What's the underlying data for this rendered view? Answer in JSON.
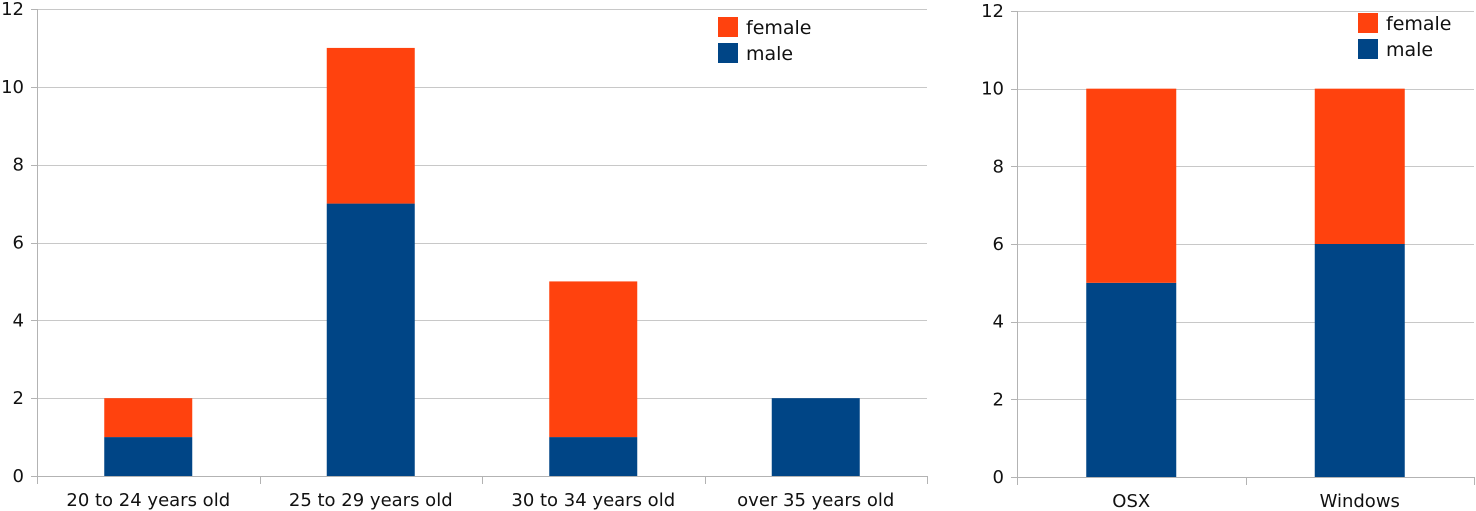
{
  "chart_data": [
    {
      "type": "bar",
      "stacked": true,
      "title": "",
      "xlabel": "",
      "ylabel": "",
      "categories": [
        "20 to 24 years old",
        "25 to 29 years old",
        "30 to 34 years old",
        "over 35 years old"
      ],
      "series": [
        {
          "name": "male",
          "values": [
            1,
            7,
            1,
            2
          ],
          "color": "#004586"
        },
        {
          "name": "female",
          "values": [
            1,
            4,
            4,
            0
          ],
          "color": "#ff420e"
        }
      ],
      "ylim": [
        0,
        12
      ],
      "yticks": [
        0,
        2,
        4,
        6,
        8,
        10,
        12
      ],
      "grid": true,
      "legend": {
        "position": "top-right",
        "order": [
          "female",
          "male"
        ]
      }
    },
    {
      "type": "bar",
      "stacked": true,
      "title": "",
      "xlabel": "",
      "ylabel": "",
      "categories": [
        "OSX",
        "Windows"
      ],
      "series": [
        {
          "name": "male",
          "values": [
            5,
            6
          ],
          "color": "#004586"
        },
        {
          "name": "female",
          "values": [
            5,
            4
          ],
          "color": "#ff420e"
        }
      ],
      "ylim": [
        0,
        12
      ],
      "yticks": [
        0,
        2,
        4,
        6,
        8,
        10,
        12
      ],
      "grid": true,
      "legend": {
        "position": "top-right",
        "order": [
          "female",
          "male"
        ]
      }
    }
  ]
}
